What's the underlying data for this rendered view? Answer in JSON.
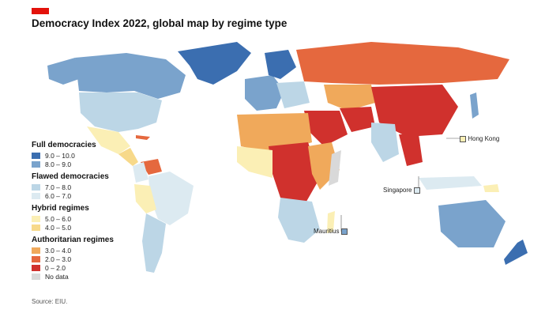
{
  "title": "Democracy Index 2022, global map by regime type",
  "source": "Source: EIU.",
  "colors": {
    "brand": "#e3120b",
    "full_high": "#3b6eb0",
    "full_low": "#7aa3cc",
    "flawed_high": "#bcd6e6",
    "flawed_low": "#dceaf1",
    "hybrid_low": "#fbefb5",
    "hybrid_high": "#f7d98a",
    "auth_high": "#f0a95b",
    "auth_mid": "#e5683e",
    "auth_low": "#d0312d",
    "no_data": "#d9d9d9"
  },
  "legend": {
    "full": {
      "heading": "Full democracies",
      "items": [
        {
          "label": "9.0 – 10.0",
          "color": "#3b6eb0"
        },
        {
          "label": "8.0 – 9.0",
          "color": "#7aa3cc"
        }
      ]
    },
    "flawed": {
      "heading": "Flawed democracies",
      "items": [
        {
          "label": "7.0 – 8.0",
          "color": "#bcd6e6"
        },
        {
          "label": "6.0 – 7.0",
          "color": "#dceaf1"
        }
      ]
    },
    "hybrid": {
      "heading": "Hybrid regimes",
      "items": [
        {
          "label": "5.0 – 6.0",
          "color": "#fbefb5"
        },
        {
          "label": "4.0 – 5.0",
          "color": "#f7d98a"
        }
      ]
    },
    "authoritarian": {
      "heading": "Authoritarian regimes",
      "items": [
        {
          "label": "3.0 – 4.0",
          "color": "#f0a95b"
        },
        {
          "label": "2.0 – 3.0",
          "color": "#e5683e"
        },
        {
          "label": "0 – 2.0",
          "color": "#d0312d"
        },
        {
          "label": "No data",
          "color": "#d9d9d9"
        }
      ]
    }
  },
  "callouts": {
    "hong_kong": "Hong Kong",
    "singapore": "Singapore",
    "mauritius": "Mauritius"
  }
}
